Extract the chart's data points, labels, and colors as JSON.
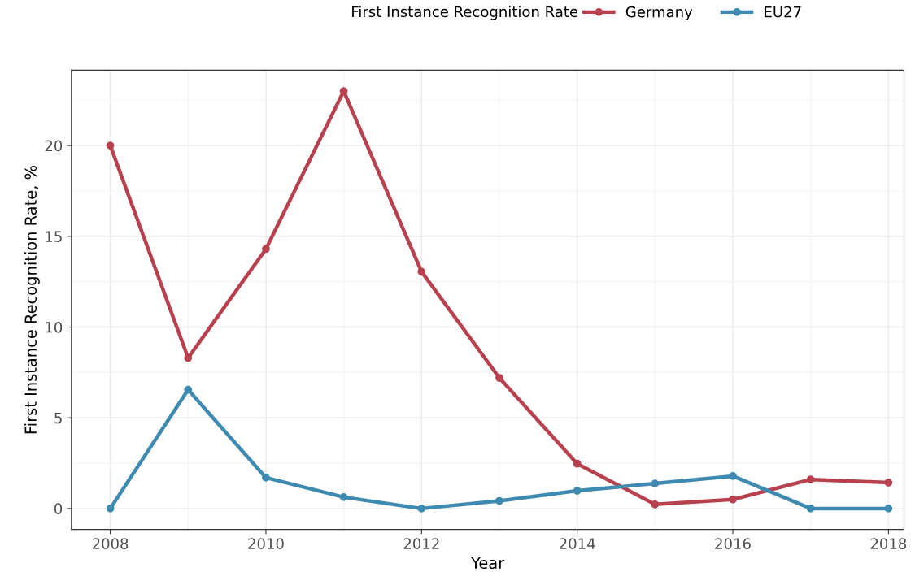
{
  "chart_data": {
    "type": "line",
    "xlabel": "Year",
    "ylabel": "First Instance Recognition Rate, %",
    "legend_title": "First Instance Recognition Rate",
    "x": [
      2008,
      2009,
      2010,
      2011,
      2012,
      2013,
      2014,
      2015,
      2016,
      2017,
      2018
    ],
    "series": [
      {
        "name": "Germany",
        "color": "#b8414f",
        "values": [
          20,
          8.3,
          14.3,
          23.0,
          13.05,
          7.2,
          2.47,
          0.23,
          0.5,
          1.6,
          1.43
        ]
      },
      {
        "name": "EU27",
        "color": "#3e8ab0",
        "values": [
          0,
          6.55,
          1.7,
          0.63,
          0,
          0.42,
          0.98,
          1.38,
          1.79,
          0,
          0
        ]
      }
    ],
    "xlim": [
      2007.5,
      2018.2
    ],
    "xticks": [
      2008,
      2010,
      2012,
      2014,
      2016,
      2018
    ],
    "ylim": [
      -1.15,
      24.15
    ],
    "yticks": [
      0,
      5,
      10,
      15,
      20
    ],
    "grid": true,
    "legend": "top",
    "marker": "circle",
    "line_style": "solid"
  }
}
